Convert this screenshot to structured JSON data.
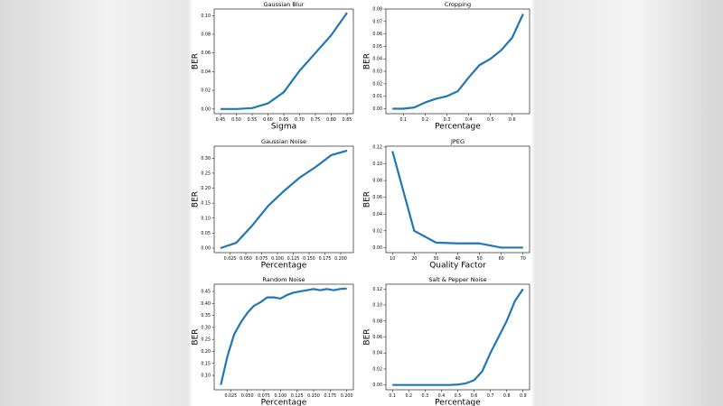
{
  "chart_data": [
    {
      "type": "line",
      "title": "Gaussian Blur",
      "xlabel": "Sigma",
      "ylabel": "BER",
      "color": "#1f77b4",
      "x": [
        0.45,
        0.5,
        0.55,
        0.6,
        0.65,
        0.7,
        0.75,
        0.8,
        0.85
      ],
      "values": [
        0.0,
        0.0,
        0.001,
        0.006,
        0.018,
        0.041,
        0.06,
        0.079,
        0.103
      ],
      "xlim": [
        0.43,
        0.87
      ],
      "ylim": [
        -0.005,
        0.107
      ],
      "xticks": [
        0.45,
        {
          "value": 0.5,
          "label": "0.50"
        },
        0.55,
        {
          "value": 0.6,
          "label": "0.60"
        },
        0.65,
        {
          "value": 0.7,
          "label": "0.70"
        },
        0.75,
        {
          "value": 0.8,
          "label": "0.80"
        },
        0.85
      ],
      "yticks": [
        {
          "value": 0,
          "label": "0.00"
        },
        {
          "value": 0.02,
          "label": "0.02"
        },
        {
          "value": 0.04,
          "label": "0.04"
        },
        {
          "value": 0.06,
          "label": "0.06"
        },
        {
          "value": 0.08,
          "label": "0.08"
        },
        {
          "value": 0.1,
          "label": "0.10"
        }
      ]
    },
    {
      "type": "line",
      "title": "Cropping",
      "xlabel": "Percentage",
      "ylabel": "BER",
      "color": "#1f77b4",
      "x": [
        0.05,
        0.1,
        0.15,
        0.2,
        0.25,
        0.3,
        0.35,
        0.4,
        0.45,
        0.5,
        0.55,
        0.6,
        0.65
      ],
      "values": [
        0.0,
        0.0,
        0.001,
        0.005,
        0.008,
        0.01,
        0.014,
        0.025,
        0.035,
        0.04,
        0.047,
        0.057,
        0.076
      ],
      "xlim": [
        0.02,
        0.68
      ],
      "ylim": [
        -0.004,
        0.08
      ],
      "xticks": [
        0.1,
        0.2,
        0.3,
        0.4,
        0.5,
        0.6
      ],
      "yticks": [
        {
          "value": 0,
          "label": "0.00"
        },
        {
          "value": 0.01,
          "label": "0.01"
        },
        {
          "value": 0.02,
          "label": "0.02"
        },
        {
          "value": 0.03,
          "label": "0.03"
        },
        {
          "value": 0.04,
          "label": "0.04"
        },
        {
          "value": 0.05,
          "label": "0.05"
        },
        {
          "value": 0.06,
          "label": "0.06"
        },
        {
          "value": 0.07,
          "label": "0.07"
        },
        {
          "value": 0.08,
          "label": "0.08"
        }
      ]
    },
    {
      "type": "line",
      "title": "Gaussian Noise",
      "xlabel": "Percentage",
      "ylabel": "BER",
      "color": "#1f77b4",
      "x": [
        0.01,
        0.035,
        0.06,
        0.085,
        0.11,
        0.135,
        0.16,
        0.185,
        0.21
      ],
      "values": [
        0.0,
        0.018,
        0.075,
        0.14,
        0.19,
        0.235,
        0.27,
        0.31,
        0.325
      ],
      "xlim": [
        0.0,
        0.22
      ],
      "ylim": [
        -0.015,
        0.34
      ],
      "xticks": [
        0.025,
        {
          "value": 0.05,
          "label": "0.050"
        },
        0.075,
        {
          "value": 0.1,
          "label": "0.100"
        },
        0.125,
        {
          "value": 0.15,
          "label": "0.150"
        },
        0.175,
        {
          "value": 0.2,
          "label": "0.200"
        }
      ],
      "yticks": [
        {
          "value": 0,
          "label": "0.00"
        },
        {
          "value": 0.05,
          "label": "0.05"
        },
        {
          "value": 0.1,
          "label": "0.10"
        },
        {
          "value": 0.15,
          "label": "0.15"
        },
        {
          "value": 0.2,
          "label": "0.20"
        },
        {
          "value": 0.25,
          "label": "0.25"
        },
        {
          "value": 0.3,
          "label": "0.30"
        }
      ]
    },
    {
      "type": "line",
      "title": "JPEG",
      "xlabel": "Quality Factor",
      "ylabel": "BER",
      "color": "#1f77b4",
      "x": [
        10,
        20,
        30,
        40,
        50,
        60,
        70
      ],
      "values": [
        0.115,
        0.02,
        0.006,
        0.005,
        0.005,
        0.0,
        0.0
      ],
      "xlim": [
        7,
        73
      ],
      "ylim": [
        -0.006,
        0.121
      ],
      "xticks": [
        10,
        20,
        30,
        40,
        50,
        60,
        70
      ],
      "yticks": [
        {
          "value": 0,
          "label": "0.00"
        },
        {
          "value": 0.02,
          "label": "0.02"
        },
        {
          "value": 0.04,
          "label": "0.04"
        },
        {
          "value": 0.06,
          "label": "0.06"
        },
        {
          "value": 0.08,
          "label": "0.08"
        },
        {
          "value": 0.1,
          "label": "0.10"
        },
        {
          "value": 0.12,
          "label": "0.12"
        }
      ]
    },
    {
      "type": "line",
      "title": "Random Noise",
      "xlabel": "Percentage",
      "ylabel": "BER",
      "color": "#1f77b4",
      "x": [
        0.01,
        0.02,
        0.03,
        0.04,
        0.05,
        0.06,
        0.07,
        0.08,
        0.09,
        0.1,
        0.11,
        0.12,
        0.13,
        0.14,
        0.15,
        0.16,
        0.17,
        0.18,
        0.19,
        0.2
      ],
      "values": [
        0.06,
        0.18,
        0.27,
        0.32,
        0.36,
        0.39,
        0.405,
        0.425,
        0.425,
        0.42,
        0.435,
        0.445,
        0.45,
        0.455,
        0.46,
        0.455,
        0.46,
        0.455,
        0.46,
        0.462
      ],
      "xlim": [
        0.0,
        0.21
      ],
      "ylim": [
        0.04,
        0.48
      ],
      "xticks": [
        0.025,
        {
          "value": 0.05,
          "label": "0.050"
        },
        0.075,
        {
          "value": 0.1,
          "label": "0.100"
        },
        0.125,
        {
          "value": 0.15,
          "label": "0.150"
        },
        0.175,
        {
          "value": 0.2,
          "label": "0.200"
        }
      ],
      "yticks": [
        {
          "value": 0.1,
          "label": "0.10"
        },
        {
          "value": 0.15,
          "label": "0.15"
        },
        {
          "value": 0.2,
          "label": "0.20"
        },
        {
          "value": 0.25,
          "label": "0.25"
        },
        {
          "value": 0.3,
          "label": "0.30"
        },
        {
          "value": 0.35,
          "label": "0.35"
        },
        {
          "value": 0.4,
          "label": "0.40"
        },
        {
          "value": 0.45,
          "label": "0.45"
        }
      ]
    },
    {
      "type": "line",
      "title": "Salt & Pepper Noise",
      "xlabel": "Percentage",
      "ylabel": "BER",
      "color": "#1f77b4",
      "x": [
        0.1,
        0.15,
        0.2,
        0.25,
        0.3,
        0.35,
        0.4,
        0.45,
        0.5,
        0.55,
        0.6,
        0.65,
        0.7,
        0.75,
        0.8,
        0.85,
        0.9
      ],
      "values": [
        0.0,
        0.0,
        0.0,
        0.0,
        0.0,
        0.0,
        0.0,
        0.0,
        0.0005,
        0.002,
        0.006,
        0.017,
        0.04,
        0.06,
        0.08,
        0.105,
        0.12
      ],
      "xlim": [
        0.06,
        0.94
      ],
      "ylim": [
        -0.006,
        0.126
      ],
      "xticks": [
        0.1,
        0.2,
        0.3,
        0.4,
        0.5,
        0.6,
        0.7,
        0.8,
        0.9
      ],
      "yticks": [
        {
          "value": 0,
          "label": "0.00"
        },
        {
          "value": 0.02,
          "label": "0.02"
        },
        {
          "value": 0.04,
          "label": "0.04"
        },
        {
          "value": 0.06,
          "label": "0.06"
        },
        {
          "value": 0.08,
          "label": "0.08"
        },
        {
          "value": 0.1,
          "label": "0.10"
        },
        {
          "value": 0.12,
          "label": "0.12"
        }
      ]
    }
  ]
}
